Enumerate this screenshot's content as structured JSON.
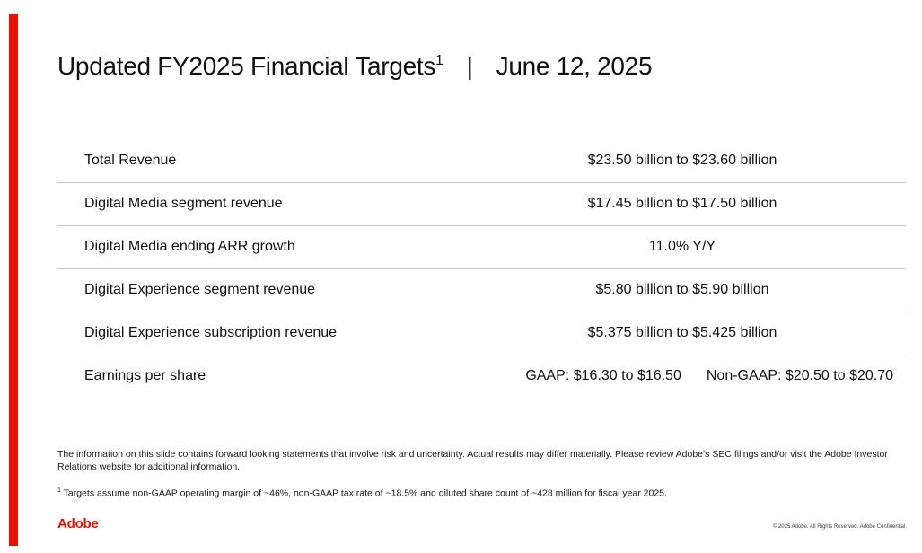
{
  "slide": {
    "accent_color": "#eb1000",
    "title": "Updated FY2025 Financial Targets",
    "title_footnote_marker": "1",
    "title_separator": "|",
    "title_date": "June 12, 2025"
  },
  "targets": [
    {
      "label": "Total Revenue",
      "value": "$23.50 billion to $23.60 billion"
    },
    {
      "label": "Digital Media segment revenue",
      "value": "$17.45 billion to $17.50 billion"
    },
    {
      "label": "Digital Media ending ARR growth",
      "value": "11.0% Y/Y"
    },
    {
      "label": "Digital Experience segment revenue",
      "value": "$5.80 billion to $5.90 billion"
    },
    {
      "label": "Digital Experience subscription revenue",
      "value": "$5.375 billion to $5.425 billion"
    },
    {
      "label": "Earnings per share",
      "gaap": "GAAP: $16.30 to $16.50",
      "non_gaap": "Non-GAAP: $20.50 to $20.70"
    }
  ],
  "disclaimer": "The information on this slide contains forward looking statements that involve risk and uncertainty. Actual results may differ materially. Please review Adobe’s SEC filings and/or visit the Adobe Investor Relations website for additional information.",
  "footnote": {
    "marker": "1",
    "text": " Targets assume non-GAAP operating margin of ~46%, non-GAAP tax rate of ~18.5% and diluted share count of ~428 million for fiscal year 2025."
  },
  "footer": {
    "logo_text": "Adobe",
    "copyright": "© 2025 Adobe. All Rights Reserved. Adobe Confidential."
  }
}
